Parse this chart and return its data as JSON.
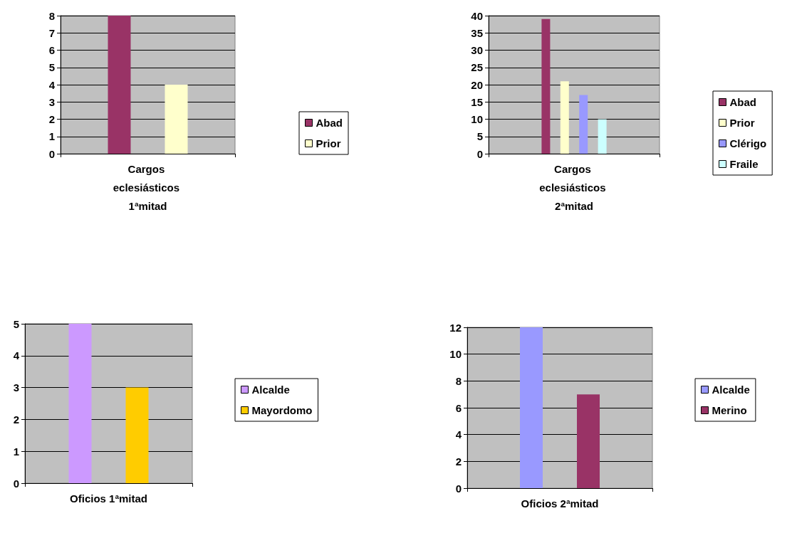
{
  "chart_data": [
    {
      "type": "bar",
      "categories": [
        "Cargos eclesiásticos 1ªmitad"
      ],
      "ylim": [
        0,
        8
      ],
      "yticks": [
        0,
        1,
        2,
        3,
        4,
        5,
        6,
        7,
        8
      ],
      "grid": "y",
      "legend": "right",
      "series": [
        {
          "name": "Abad",
          "color": "#993366",
          "values": [
            8
          ]
        },
        {
          "name": "Prior",
          "color": "#ffffcc",
          "values": [
            4
          ]
        }
      ]
    },
    {
      "type": "bar",
      "categories": [
        "Cargos eclesiásticos 2ªmitad"
      ],
      "ylim": [
        0,
        40
      ],
      "yticks": [
        0,
        5,
        10,
        15,
        20,
        25,
        30,
        35,
        40
      ],
      "grid": "y",
      "legend": "right",
      "series": [
        {
          "name": "Abad",
          "color": "#993366",
          "values": [
            39
          ]
        },
        {
          "name": "Prior",
          "color": "#ffffcc",
          "values": [
            21
          ]
        },
        {
          "name": "Clérigo",
          "color": "#9999ff",
          "values": [
            17
          ]
        },
        {
          "name": "Fraile",
          "color": "#ccffff",
          "values": [
            10
          ]
        }
      ]
    },
    {
      "type": "bar",
      "categories": [
        "Oficios 1ªmitad"
      ],
      "ylim": [
        0,
        5
      ],
      "yticks": [
        0,
        1,
        2,
        3,
        4,
        5
      ],
      "grid": "y",
      "legend": "right",
      "series": [
        {
          "name": "Alcalde",
          "color": "#cc99ff",
          "values": [
            5
          ]
        },
        {
          "name": "Mayordomo",
          "color": "#ffcc00",
          "values": [
            3
          ]
        }
      ]
    },
    {
      "type": "bar",
      "categories": [
        "Oficios 2ªmitad"
      ],
      "ylim": [
        0,
        12
      ],
      "yticks": [
        0,
        2,
        4,
        6,
        8,
        10,
        12
      ],
      "grid": "y",
      "legend": "right",
      "series": [
        {
          "name": "Alcalde",
          "color": "#9999ff",
          "values": [
            12
          ]
        },
        {
          "name": "Merino",
          "color": "#993366",
          "values": [
            7
          ]
        }
      ]
    }
  ]
}
